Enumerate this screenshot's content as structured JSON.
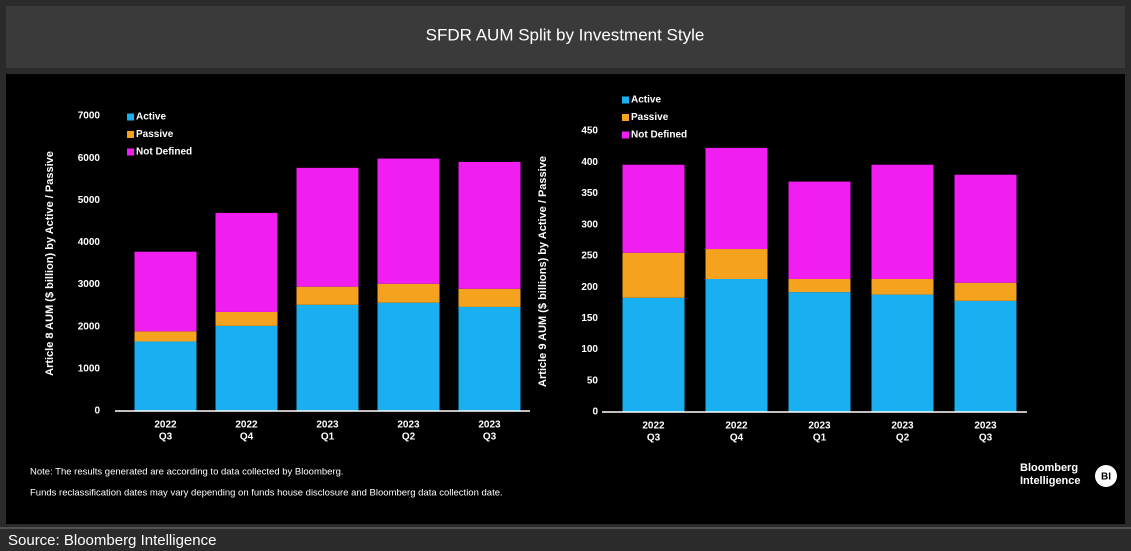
{
  "title": "SFDR AUM Split by Investment Style",
  "chart_data": [
    {
      "type": "bar",
      "stacked": true,
      "ylabel": "Article 8 AUM ($ billion)  by Active / Passive",
      "categories": [
        [
          "2022",
          "Q3"
        ],
        [
          "2022",
          "Q4"
        ],
        [
          "2023",
          "Q1"
        ],
        [
          "2023",
          "Q2"
        ],
        [
          "2023",
          "Q3"
        ]
      ],
      "series": [
        {
          "name": "Active",
          "color": "#1aaff0",
          "values": [
            1650,
            2020,
            2520,
            2570,
            2470
          ]
        },
        {
          "name": "Passive",
          "color": "#f5a21e",
          "values": [
            240,
            330,
            430,
            450,
            430
          ]
        },
        {
          "name": "Not Defined",
          "color": "#f01ef0",
          "values": [
            1890,
            2350,
            2820,
            2970,
            3010
          ]
        }
      ],
      "ylim": [
        0,
        7000
      ],
      "yticks": [
        0,
        1000,
        2000,
        3000,
        4000,
        5000,
        6000,
        7000
      ],
      "legend": "upper left",
      "grid": false
    },
    {
      "type": "bar",
      "stacked": true,
      "ylabel": "Article 9 AUM ($ billions)  by Active / Passive",
      "categories": [
        [
          "2022",
          "Q3"
        ],
        [
          "2022",
          "Q4"
        ],
        [
          "2023",
          "Q1"
        ],
        [
          "2023",
          "Q2"
        ],
        [
          "2023",
          "Q3"
        ]
      ],
      "series": [
        {
          "name": "Active",
          "color": "#1aaff0",
          "values": [
            183,
            213,
            192,
            188,
            178
          ]
        },
        {
          "name": "Passive",
          "color": "#f5a21e",
          "values": [
            72,
            48,
            21,
            25,
            29
          ]
        },
        {
          "name": "Not Defined",
          "color": "#f01ef0",
          "values": [
            141,
            162,
            156,
            183,
            173
          ]
        }
      ],
      "ylim": [
        0,
        450
      ],
      "yticks": [
        0,
        50,
        100,
        150,
        200,
        250,
        300,
        350,
        400,
        450
      ],
      "legend": "upper left",
      "grid": false
    }
  ],
  "notes": [
    "Note: The results generated are according to data collected by Bloomberg.",
    "Funds reclassification dates may vary depending on funds house disclosure and Bloomberg data collection date."
  ],
  "logo": [
    "Bloomberg",
    "Intelligence"
  ],
  "badge": "BI",
  "source": "Source: Bloomberg Intelligence"
}
